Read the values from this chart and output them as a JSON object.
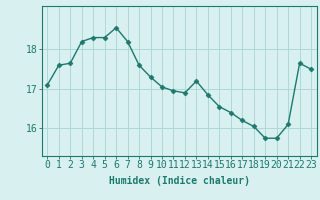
{
  "x": [
    0,
    1,
    2,
    3,
    4,
    5,
    6,
    7,
    8,
    9,
    10,
    11,
    12,
    13,
    14,
    15,
    16,
    17,
    18,
    19,
    20,
    21,
    22,
    23
  ],
  "y": [
    17.1,
    17.6,
    17.65,
    18.2,
    18.3,
    18.3,
    18.55,
    18.2,
    17.6,
    17.3,
    17.05,
    16.95,
    16.9,
    17.2,
    16.85,
    16.55,
    16.4,
    16.2,
    16.05,
    15.75,
    15.75,
    16.1,
    17.65,
    17.5
  ],
  "line_color": "#1a7a6e",
  "marker": "D",
  "marker_size": 2.5,
  "linewidth": 1.0,
  "background_color": "#d8f0f0",
  "grid_color": "#b0d8d8",
  "xlabel": "Humidex (Indice chaleur)",
  "ylim": [
    15.3,
    19.1
  ],
  "yticks": [
    16,
    17,
    18
  ],
  "xtick_labels": [
    "0",
    "1",
    "2",
    "3",
    "4",
    "5",
    "6",
    "7",
    "8",
    "9",
    "10",
    "11",
    "12",
    "13",
    "14",
    "15",
    "16",
    "17",
    "18",
    "19",
    "20",
    "21",
    "22",
    "23"
  ],
  "xlabel_fontsize": 7,
  "tick_fontsize": 7
}
